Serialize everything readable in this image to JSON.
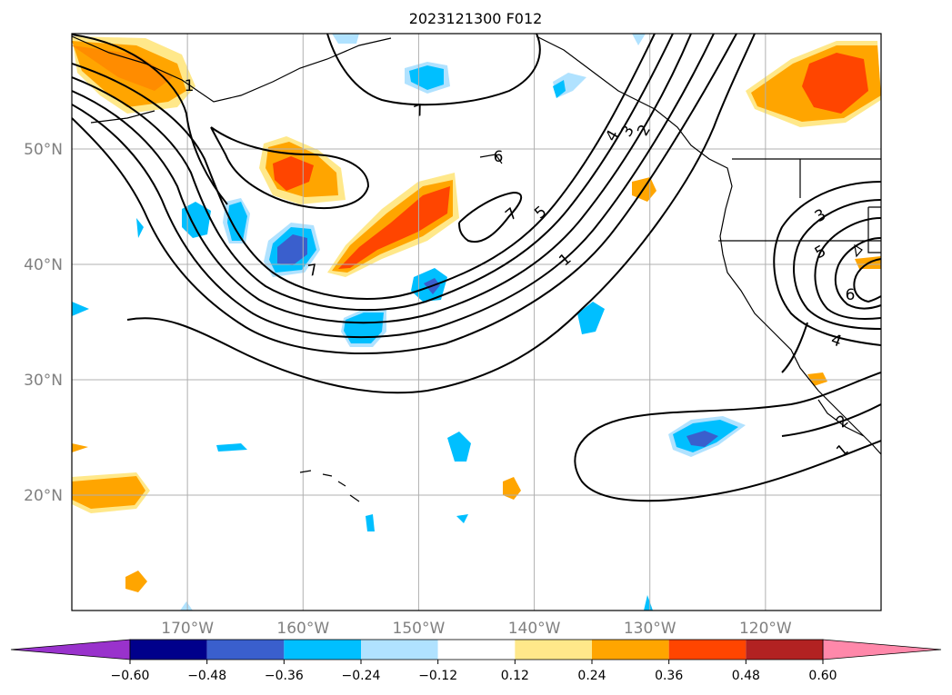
{
  "title": "2023121300 F012",
  "map": {
    "lat_labels": [
      {
        "text": "50°N",
        "lat": 50
      },
      {
        "text": "40°N",
        "lat": 40
      },
      {
        "text": "30°N",
        "lat": 30
      },
      {
        "text": "20°N",
        "lat": 20
      }
    ],
    "lon_labels": [
      {
        "text": "170°W",
        "lon": -170
      },
      {
        "text": "160°W",
        "lon": -160
      },
      {
        "text": "150°W",
        "lon": -150
      },
      {
        "text": "140°W",
        "lon": -140
      },
      {
        "text": "130°W",
        "lon": -130
      },
      {
        "text": "120°W",
        "lon": -120
      }
    ],
    "extent": {
      "lon_min": -180,
      "lon_max": -110,
      "lat_min": 10,
      "lat_max": 60
    },
    "contour_labels": [
      "7",
      "7",
      "7",
      "5",
      "1",
      "4",
      "3",
      "2",
      "3",
      "5",
      "4",
      "2",
      "1",
      "1",
      "6",
      "6"
    ],
    "grid": true,
    "label_color": "#808080"
  },
  "colorbar": {
    "ticks": [
      "−0.60",
      "−0.48",
      "−0.36",
      "−0.24",
      "−0.12",
      "0.12",
      "0.24",
      "0.36",
      "0.48",
      "0.60"
    ],
    "colors": [
      "#9932cc",
      "#00008b",
      "#3a5fcd",
      "#00bfff",
      "#b0e2ff",
      "#ffffff",
      "#ffe88a",
      "#ffa500",
      "#ff4500",
      "#b22222",
      "#ff88aa"
    ]
  }
}
